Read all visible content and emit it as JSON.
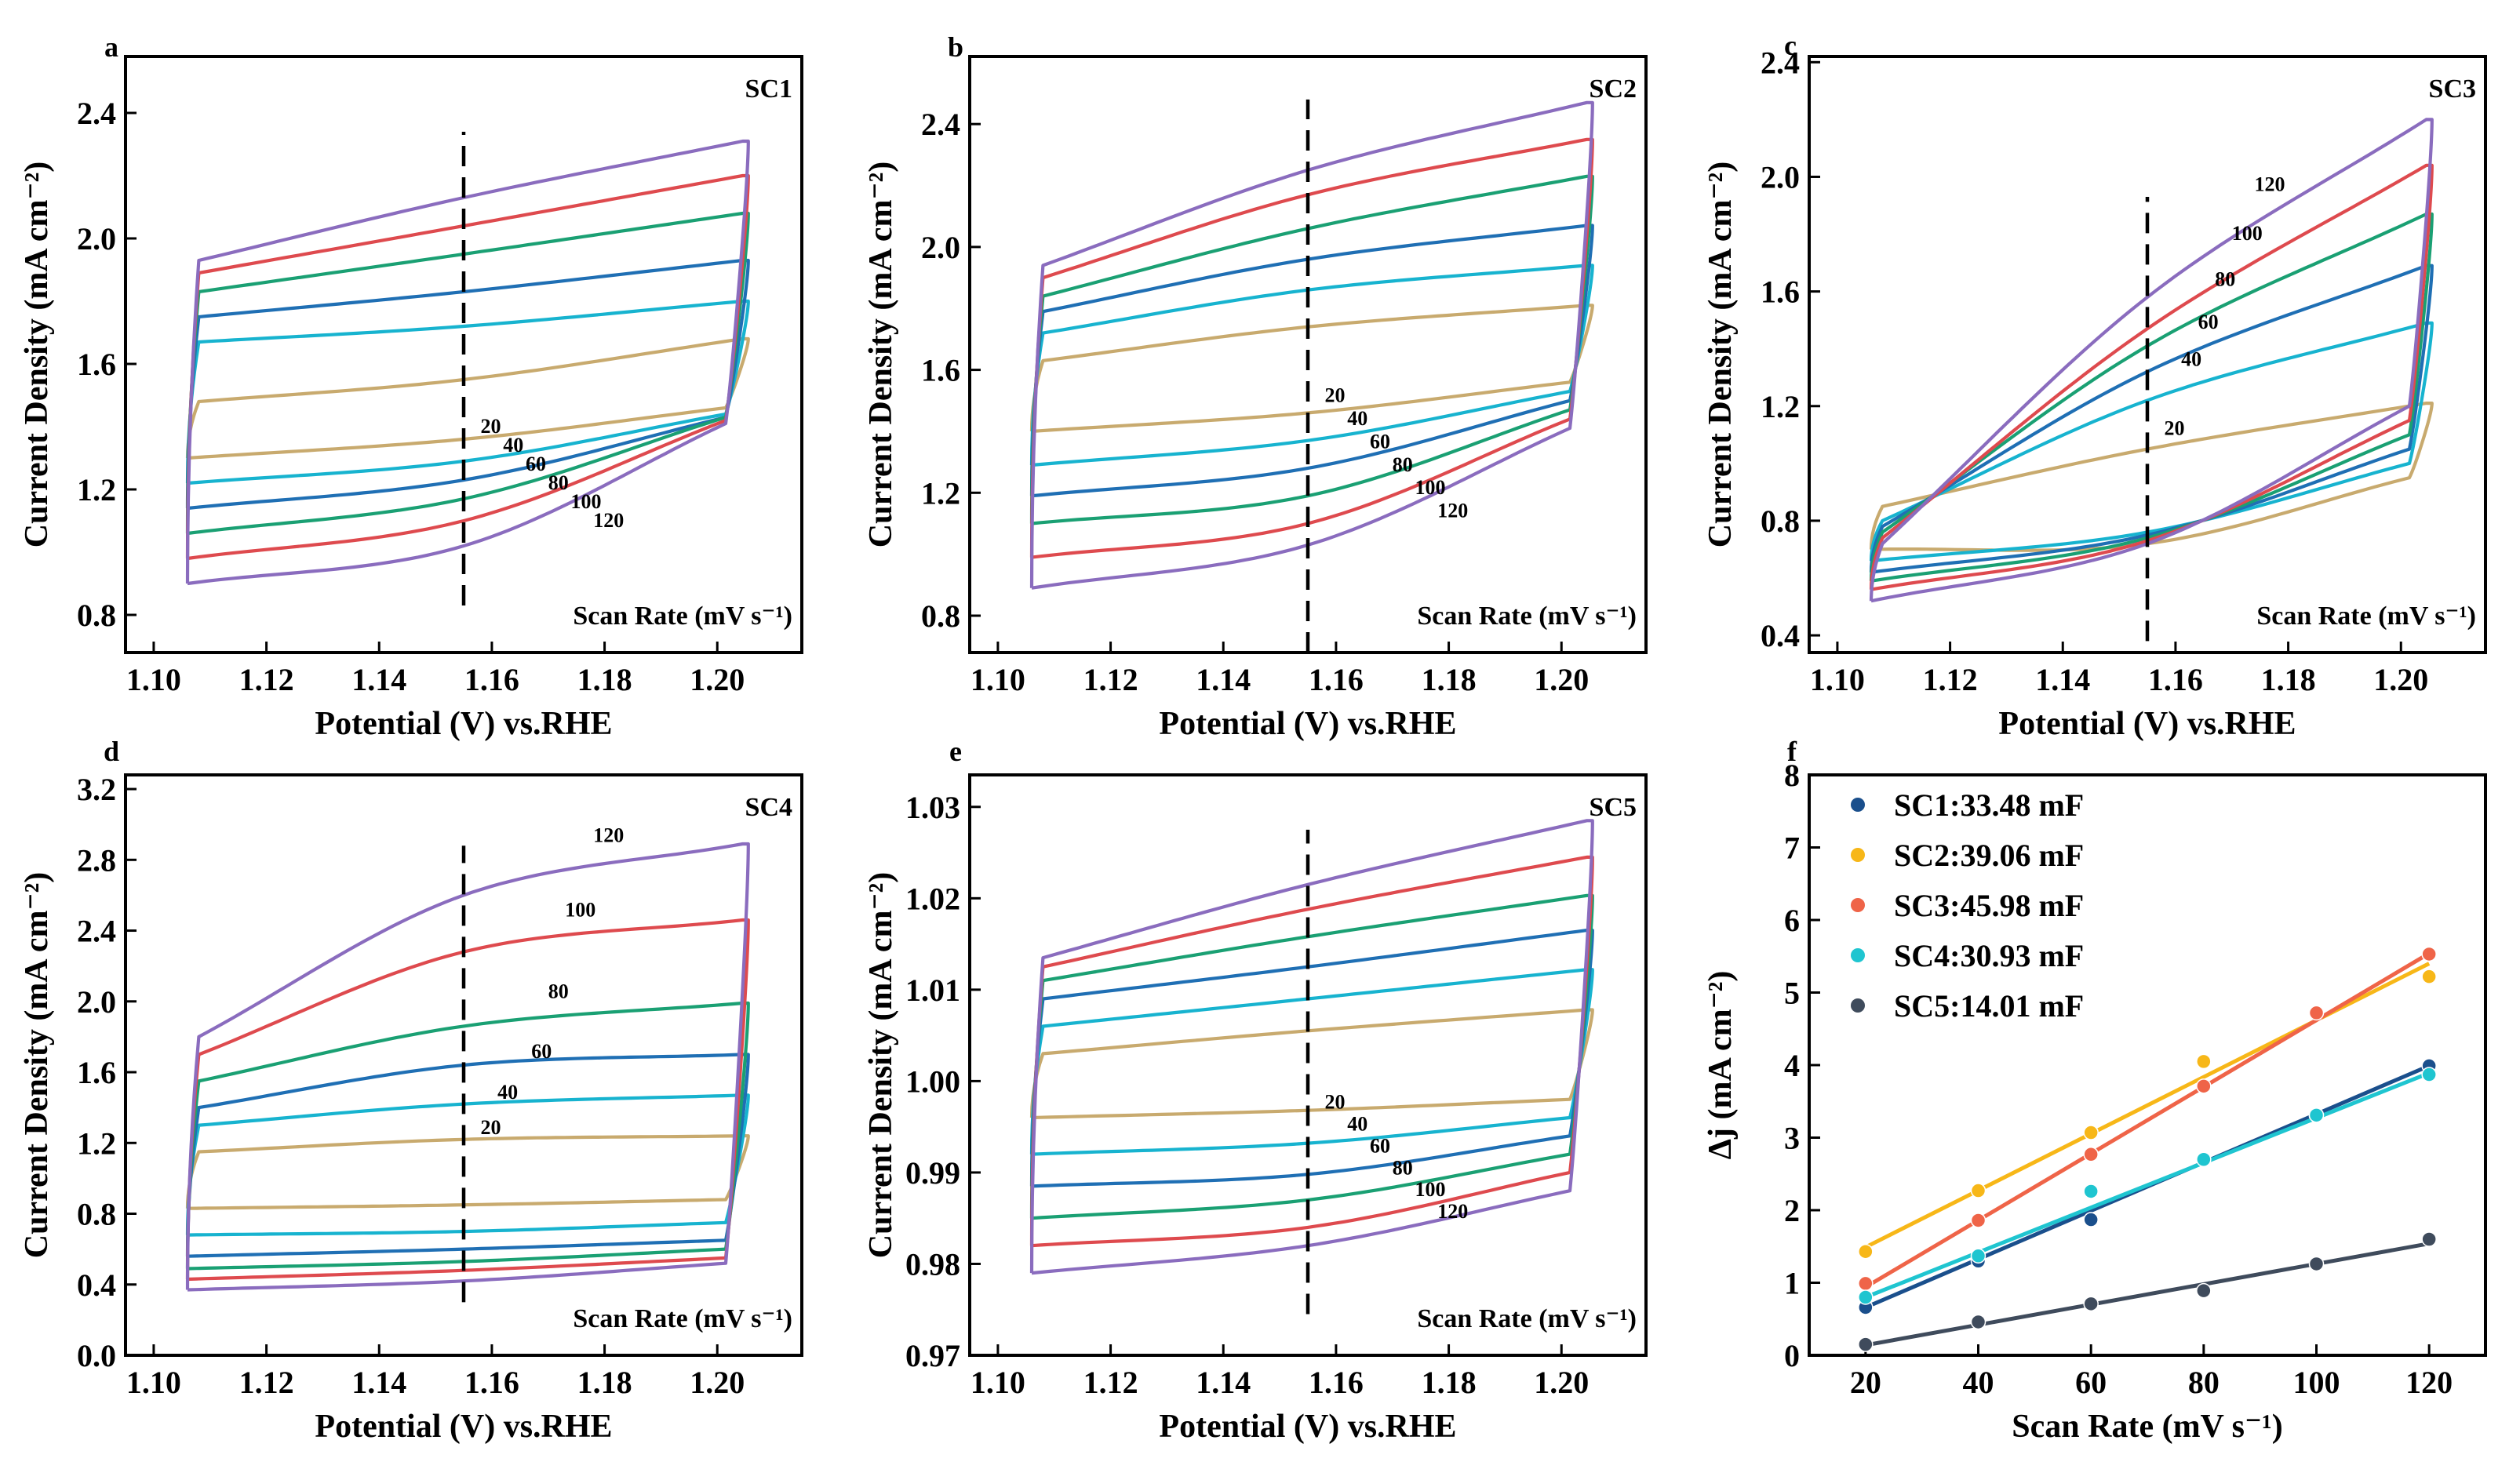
{
  "figure": {
    "background": "#ffffff"
  },
  "chart_data": [
    {
      "id": "a",
      "type": "line",
      "panel_letter": "a",
      "tag": "SC1",
      "xlabel": "Potential (V) vs.RHE",
      "ylabel": "Current Density (mA cm⁻²)",
      "xlim": [
        1.095,
        1.215
      ],
      "ylim": [
        0.68,
        2.58
      ],
      "xticks": [
        1.1,
        1.12,
        1.14,
        1.16,
        1.18,
        1.2
      ],
      "xtick_labels": [
        "1.10",
        "1.12",
        "1.14",
        "1.16",
        "1.18",
        "1.20"
      ],
      "yticks": [
        0.8,
        1.2,
        1.6,
        2.0,
        2.4
      ],
      "ytick_labels": [
        "0.8",
        "1.2",
        "1.6",
        "2.0",
        "2.4"
      ],
      "scan_rate_label": "Scan Rate (mV s⁻¹)",
      "marker_x": 1.155,
      "marker_y": [
        0.83,
        2.34
      ],
      "label_mode": "stair",
      "rate_labels_start": [
        1.158,
        1.38
      ],
      "rate_labels_step": [
        0.004,
        -0.06
      ],
      "series": [
        {
          "name": "20",
          "color": "#c8aa6e",
          "upper": [
            1.48,
            1.55,
            1.68
          ],
          "lower": [
            1.3,
            1.36,
            1.46
          ]
        },
        {
          "name": "40",
          "color": "#17b3cf",
          "upper": [
            1.67,
            1.72,
            1.8
          ],
          "lower": [
            1.22,
            1.29,
            1.44
          ]
        },
        {
          "name": "60",
          "color": "#1f6fb4",
          "upper": [
            1.75,
            1.83,
            1.93
          ],
          "lower": [
            1.14,
            1.23,
            1.43
          ]
        },
        {
          "name": "80",
          "color": "#1aa073",
          "upper": [
            1.83,
            1.95,
            2.08
          ],
          "lower": [
            1.06,
            1.17,
            1.43
          ]
        },
        {
          "name": "100",
          "color": "#de4a4e",
          "upper": [
            1.89,
            2.04,
            2.2
          ],
          "lower": [
            0.98,
            1.1,
            1.42
          ]
        },
        {
          "name": "120",
          "color": "#8a6cbe",
          "upper": [
            1.93,
            2.13,
            2.31
          ],
          "lower": [
            0.9,
            1.02,
            1.41
          ]
        }
      ]
    },
    {
      "id": "b",
      "type": "line",
      "panel_letter": "b",
      "tag": "SC2",
      "xlabel": "Potential (V) vs.RHE",
      "ylabel": "Current Density (mA cm⁻²)",
      "xlim": [
        1.095,
        1.215
      ],
      "ylim": [
        0.68,
        2.62
      ],
      "xticks": [
        1.1,
        1.12,
        1.14,
        1.16,
        1.18,
        1.2
      ],
      "xtick_labels": [
        "1.10",
        "1.12",
        "1.14",
        "1.16",
        "1.18",
        "1.20"
      ],
      "yticks": [
        0.8,
        1.2,
        1.6,
        2.0,
        2.4
      ],
      "ytick_labels": [
        "0.8",
        "1.2",
        "1.6",
        "2.0",
        "2.4"
      ],
      "scan_rate_label": "Scan Rate (mV s⁻¹)",
      "marker_x": 1.155,
      "marker_y": [
        0.68,
        2.48
      ],
      "label_mode": "stair",
      "rate_labels_start": [
        1.158,
        1.495
      ],
      "rate_labels_step": [
        0.004,
        -0.075
      ],
      "series": [
        {
          "name": "20",
          "color": "#c8aa6e",
          "upper": [
            1.63,
            1.74,
            1.81
          ],
          "lower": [
            1.4,
            1.46,
            1.56
          ]
        },
        {
          "name": "40",
          "color": "#17b3cf",
          "upper": [
            1.72,
            1.86,
            1.94
          ],
          "lower": [
            1.29,
            1.37,
            1.53
          ]
        },
        {
          "name": "60",
          "color": "#1f6fb4",
          "upper": [
            1.79,
            1.96,
            2.07
          ],
          "lower": [
            1.19,
            1.28,
            1.5
          ]
        },
        {
          "name": "80",
          "color": "#1aa073",
          "upper": [
            1.84,
            2.06,
            2.23
          ],
          "lower": [
            1.1,
            1.19,
            1.47
          ]
        },
        {
          "name": "100",
          "color": "#de4a4e",
          "upper": [
            1.9,
            2.17,
            2.35
          ],
          "lower": [
            0.99,
            1.1,
            1.44
          ]
        },
        {
          "name": "120",
          "color": "#8a6cbe",
          "upper": [
            1.94,
            2.25,
            2.47
          ],
          "lower": [
            0.89,
            1.03,
            1.41
          ]
        }
      ]
    },
    {
      "id": "c",
      "type": "line",
      "panel_letter": "c",
      "tag": "SC3",
      "xlabel": "Potential (V) vs.RHE",
      "ylabel": "Current Density (mA cm⁻²)",
      "xlim": [
        1.095,
        1.215
      ],
      "ylim": [
        0.34,
        2.42
      ],
      "xticks": [
        1.1,
        1.12,
        1.14,
        1.16,
        1.18,
        1.2
      ],
      "xtick_labels": [
        "1.10",
        "1.12",
        "1.14",
        "1.16",
        "1.18",
        "1.20"
      ],
      "yticks": [
        0.4,
        0.8,
        1.2,
        1.6,
        2.0,
        2.4
      ],
      "ytick_labels": [
        "0.4",
        "0.8",
        "1.2",
        "1.6",
        "2.0",
        "2.4"
      ],
      "scan_rate_label": "Scan Rate (mV s⁻¹)",
      "marker_x": 1.155,
      "marker_y": [
        0.38,
        1.93
      ],
      "label_mode": "custom",
      "series": [
        {
          "name": "20",
          "color": "#c8aa6e",
          "upper": [
            0.85,
            1.05,
            1.21
          ],
          "lower": [
            0.7,
            0.72,
            0.95
          ],
          "label_pos": [
            1.158,
            1.1
          ]
        },
        {
          "name": "40",
          "color": "#17b3cf",
          "upper": [
            0.8,
            1.22,
            1.49
          ],
          "lower": [
            0.66,
            0.76,
            1.0
          ],
          "label_pos": [
            1.161,
            1.34
          ]
        },
        {
          "name": "60",
          "color": "#1f6fb4",
          "upper": [
            0.78,
            1.32,
            1.69
          ],
          "lower": [
            0.62,
            0.75,
            1.05
          ],
          "label_pos": [
            1.164,
            1.47
          ]
        },
        {
          "name": "80",
          "color": "#1aa073",
          "upper": [
            0.76,
            1.41,
            1.87
          ],
          "lower": [
            0.59,
            0.74,
            1.1
          ],
          "label_pos": [
            1.167,
            1.62
          ]
        },
        {
          "name": "100",
          "color": "#de4a4e",
          "upper": [
            0.74,
            1.47,
            2.04
          ],
          "lower": [
            0.56,
            0.73,
            1.15
          ],
          "label_pos": [
            1.17,
            1.78
          ]
        },
        {
          "name": "120",
          "color": "#8a6cbe",
          "upper": [
            0.72,
            1.58,
            2.2
          ],
          "lower": [
            0.52,
            0.72,
            1.2
          ],
          "label_pos": [
            1.174,
            1.95
          ]
        }
      ]
    },
    {
      "id": "d",
      "type": "line",
      "panel_letter": "d",
      "tag": "SC4",
      "xlabel": "Potential (V) vs.RHE",
      "ylabel": "Current Density (mA cm⁻²)",
      "xlim": [
        1.095,
        1.215
      ],
      "ylim": [
        0.0,
        3.28
      ],
      "xticks": [
        1.1,
        1.12,
        1.14,
        1.16,
        1.18,
        1.2
      ],
      "xtick_labels": [
        "1.10",
        "1.12",
        "1.14",
        "1.16",
        "1.18",
        "1.20"
      ],
      "yticks": [
        0.0,
        0.4,
        0.8,
        1.2,
        1.6,
        2.0,
        2.4,
        2.8,
        3.2
      ],
      "ytick_labels": [
        "0.0",
        "0.4",
        "0.8",
        "1.2",
        "1.6",
        "2.0",
        "2.4",
        "2.8",
        "3.2"
      ],
      "scan_rate_label": "Scan Rate (mV s⁻¹)",
      "marker_x": 1.155,
      "marker_y": [
        0.3,
        2.88
      ],
      "label_mode": "custom",
      "series": [
        {
          "name": "20",
          "color": "#c8aa6e",
          "upper": [
            1.15,
            1.22,
            1.24
          ],
          "lower": [
            0.83,
            0.85,
            0.88
          ],
          "label_pos": [
            1.158,
            1.25
          ]
        },
        {
          "name": "40",
          "color": "#17b3cf",
          "upper": [
            1.3,
            1.42,
            1.47
          ],
          "lower": [
            0.68,
            0.7,
            0.75
          ],
          "label_pos": [
            1.161,
            1.45
          ]
        },
        {
          "name": "60",
          "color": "#1f6fb4",
          "upper": [
            1.4,
            1.64,
            1.7
          ],
          "lower": [
            0.56,
            0.6,
            0.65
          ],
          "label_pos": [
            1.167,
            1.68
          ]
        },
        {
          "name": "80",
          "color": "#1aa073",
          "upper": [
            1.55,
            1.86,
            1.99
          ],
          "lower": [
            0.49,
            0.53,
            0.6
          ],
          "label_pos": [
            1.17,
            2.02
          ]
        },
        {
          "name": "100",
          "color": "#de4a4e",
          "upper": [
            1.7,
            2.28,
            2.46
          ],
          "lower": [
            0.43,
            0.48,
            0.55
          ],
          "label_pos": [
            1.173,
            2.48
          ]
        },
        {
          "name": "120",
          "color": "#8a6cbe",
          "upper": [
            1.8,
            2.6,
            2.89
          ],
          "lower": [
            0.37,
            0.42,
            0.52
          ],
          "label_pos": [
            1.178,
            2.9
          ]
        }
      ]
    },
    {
      "id": "e",
      "type": "line",
      "panel_letter": "e",
      "tag": "SC5",
      "xlabel": "Potential (V) vs.RHE",
      "ylabel": "Current Density (mA cm⁻²)",
      "xlim": [
        1.095,
        1.215
      ],
      "ylim": [
        0.97,
        1.0335
      ],
      "xticks": [
        1.1,
        1.12,
        1.14,
        1.16,
        1.18,
        1.2
      ],
      "xtick_labels": [
        "1.10",
        "1.12",
        "1.14",
        "1.16",
        "1.18",
        "1.20"
      ],
      "yticks": [
        0.97,
        0.98,
        0.99,
        1.0,
        1.01,
        1.02,
        1.03
      ],
      "ytick_labels": [
        "0.97",
        "0.98",
        "0.99",
        "1.00",
        "1.01",
        "1.02",
        "1.03"
      ],
      "scan_rate_label": "Scan Rate (mV s⁻¹)",
      "marker_x": 1.155,
      "marker_y": [
        0.9745,
        1.0275
      ],
      "label_mode": "stair",
      "rate_labels_start": [
        1.158,
        0.997
      ],
      "rate_labels_step": [
        0.004,
        -0.0024
      ],
      "series": [
        {
          "name": "20",
          "color": "#c8aa6e",
          "upper": [
            1.003,
            1.0055,
            1.0078
          ],
          "lower": [
            0.996,
            0.9968,
            0.998
          ]
        },
        {
          "name": "40",
          "color": "#17b3cf",
          "upper": [
            1.006,
            1.009,
            1.0122
          ],
          "lower": [
            0.992,
            0.9932,
            0.996
          ]
        },
        {
          "name": "60",
          "color": "#1f6fb4",
          "upper": [
            1.009,
            1.0125,
            1.0165
          ],
          "lower": [
            0.9885,
            0.9898,
            0.994
          ]
        },
        {
          "name": "80",
          "color": "#1aa073",
          "upper": [
            1.011,
            1.0158,
            1.0203
          ],
          "lower": [
            0.985,
            0.987,
            0.992
          ]
        },
        {
          "name": "100",
          "color": "#de4a4e",
          "upper": [
            1.0125,
            1.0188,
            1.0245
          ],
          "lower": [
            0.982,
            0.984,
            0.99
          ]
        },
        {
          "name": "120",
          "color": "#8a6cbe",
          "upper": [
            1.0135,
            1.0215,
            1.0285
          ],
          "lower": [
            0.979,
            0.982,
            0.988
          ]
        }
      ]
    },
    {
      "id": "f",
      "type": "scatter",
      "panel_letter": "f",
      "xlabel": "Scan Rate (mV s⁻¹)",
      "ylabel": "Δj (mA cm⁻²)",
      "xlim": [
        10,
        130
      ],
      "ylim": [
        0,
        8
      ],
      "xticks": [
        20,
        40,
        60,
        80,
        100,
        120
      ],
      "xtick_labels": [
        "20",
        "40",
        "60",
        "80",
        "100",
        "120"
      ],
      "yticks": [
        0,
        1,
        2,
        3,
        4,
        5,
        6,
        7,
        8
      ],
      "ytick_labels": [
        "0",
        "1",
        "2",
        "3",
        "4",
        "5",
        "6",
        "7",
        "8"
      ],
      "legend_position": "top-left",
      "x": [
        20,
        40,
        60,
        80,
        100,
        120
      ],
      "series": [
        {
          "name": "SC1:33.48 mF",
          "color": "#1a4f8c",
          "values": [
            0.66,
            1.3,
            1.87,
            2.7,
            3.3,
            3.99
          ],
          "fit": [
            0.66,
            3.99
          ]
        },
        {
          "name": "SC2:39.06 mF",
          "color": "#f7b718",
          "values": [
            1.43,
            2.27,
            3.07,
            4.05,
            4.7,
            5.22
          ],
          "fit": [
            1.49,
            5.4
          ]
        },
        {
          "name": "SC3:45.98 mF",
          "color": "#ef6448",
          "values": [
            0.99,
            1.86,
            2.77,
            3.71,
            4.72,
            5.53
          ],
          "fit": [
            0.94,
            5.54
          ]
        },
        {
          "name": "SC4:30.93 mF",
          "color": "#1fc5d0",
          "values": [
            0.8,
            1.37,
            2.26,
            2.7,
            3.31,
            3.87
          ],
          "fit": [
            0.8,
            3.89
          ]
        },
        {
          "name": "SC5:14.01 mF",
          "color": "#3f4b5c",
          "values": [
            0.15,
            0.46,
            0.71,
            0.89,
            1.26,
            1.6
          ],
          "fit": [
            0.14,
            1.54
          ]
        }
      ]
    }
  ]
}
